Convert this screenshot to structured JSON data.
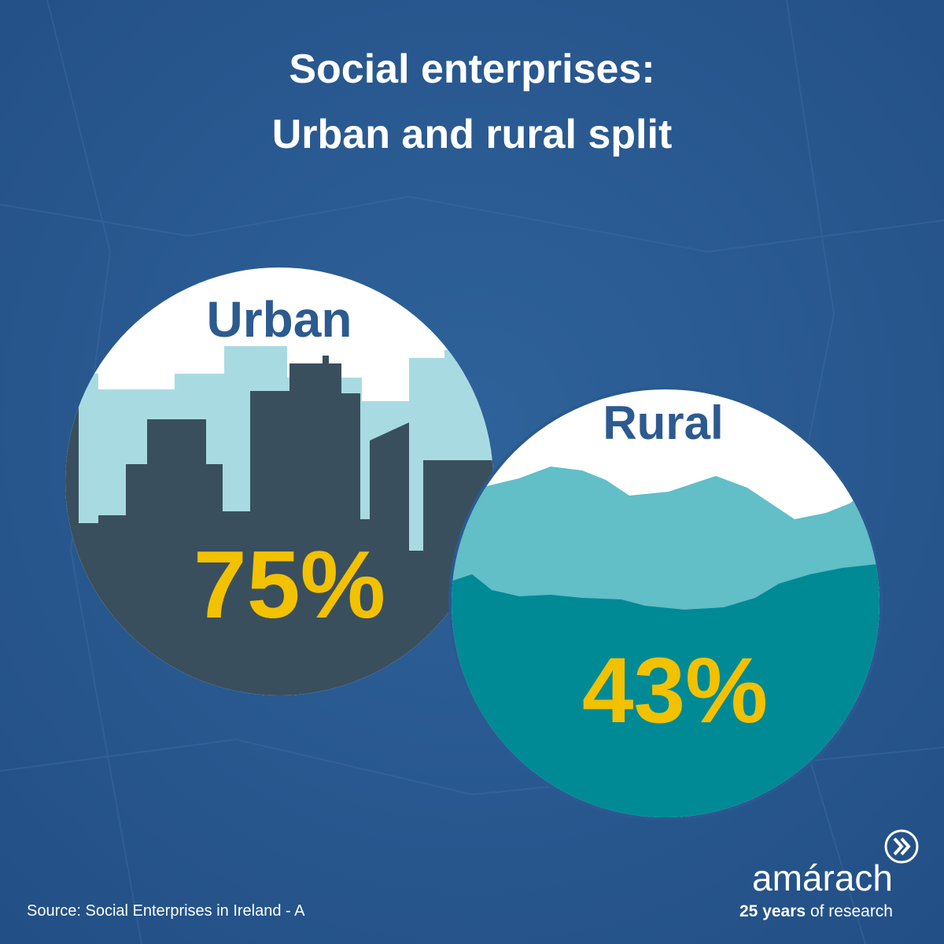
{
  "header": {
    "title_lines": [
      "Social enterprises:",
      "Urban and rural split"
    ]
  },
  "panels": [
    {
      "label": "Urban",
      "value": "75%"
    },
    {
      "label": "Rural",
      "value": "43%"
    }
  ],
  "footer": {
    "source": "Source: Social Enterprises in Ireland - A",
    "brand": {
      "name": "amárach",
      "tagline_bold": "25 years",
      "tagline_rest": "of research"
    }
  }
}
